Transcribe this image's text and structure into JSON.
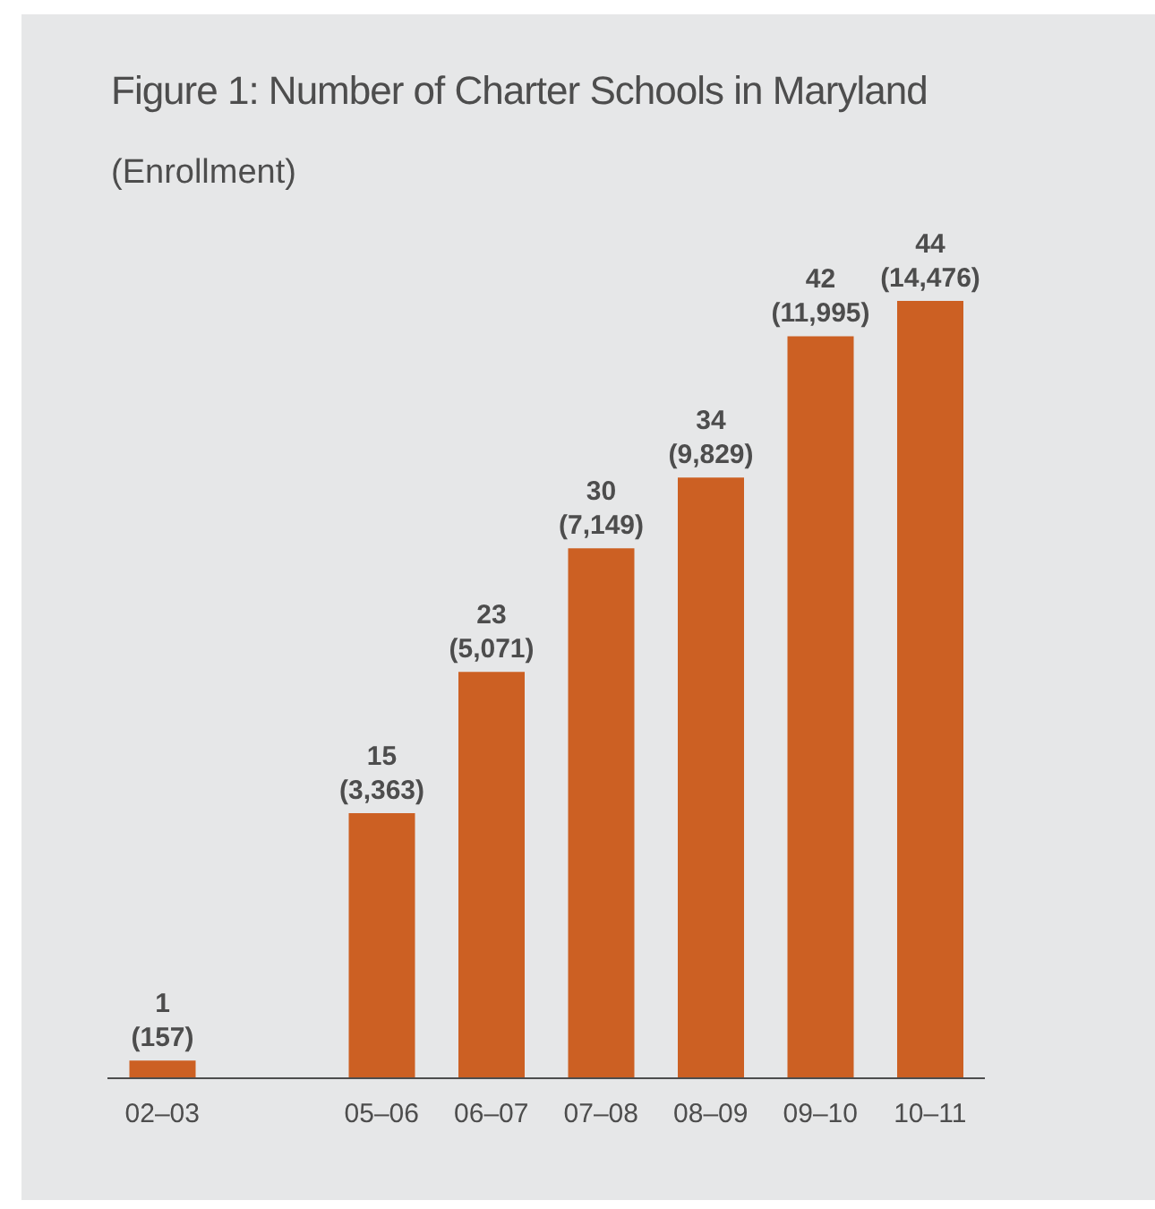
{
  "chart_data": {
    "type": "bar",
    "title": "Figure 1: Number of Charter Schools in Maryland",
    "subtitle": "(Enrollment)",
    "categories": [
      "02–03",
      null,
      "05–06",
      "06–07",
      "07–08",
      "08–09",
      "09–10",
      "10–11"
    ],
    "values": [
      1,
      null,
      15,
      23,
      30,
      34,
      42,
      44
    ],
    "value_labels": [
      "1\n(157)",
      null,
      "15\n(3,363)",
      "23\n(5,071)",
      "30\n(7,149)",
      "34\n(9,829)",
      "42\n(11,995)",
      "44\n(14,476)"
    ],
    "color": "#cc6023",
    "grid": false,
    "tick_labels": "x"
  }
}
